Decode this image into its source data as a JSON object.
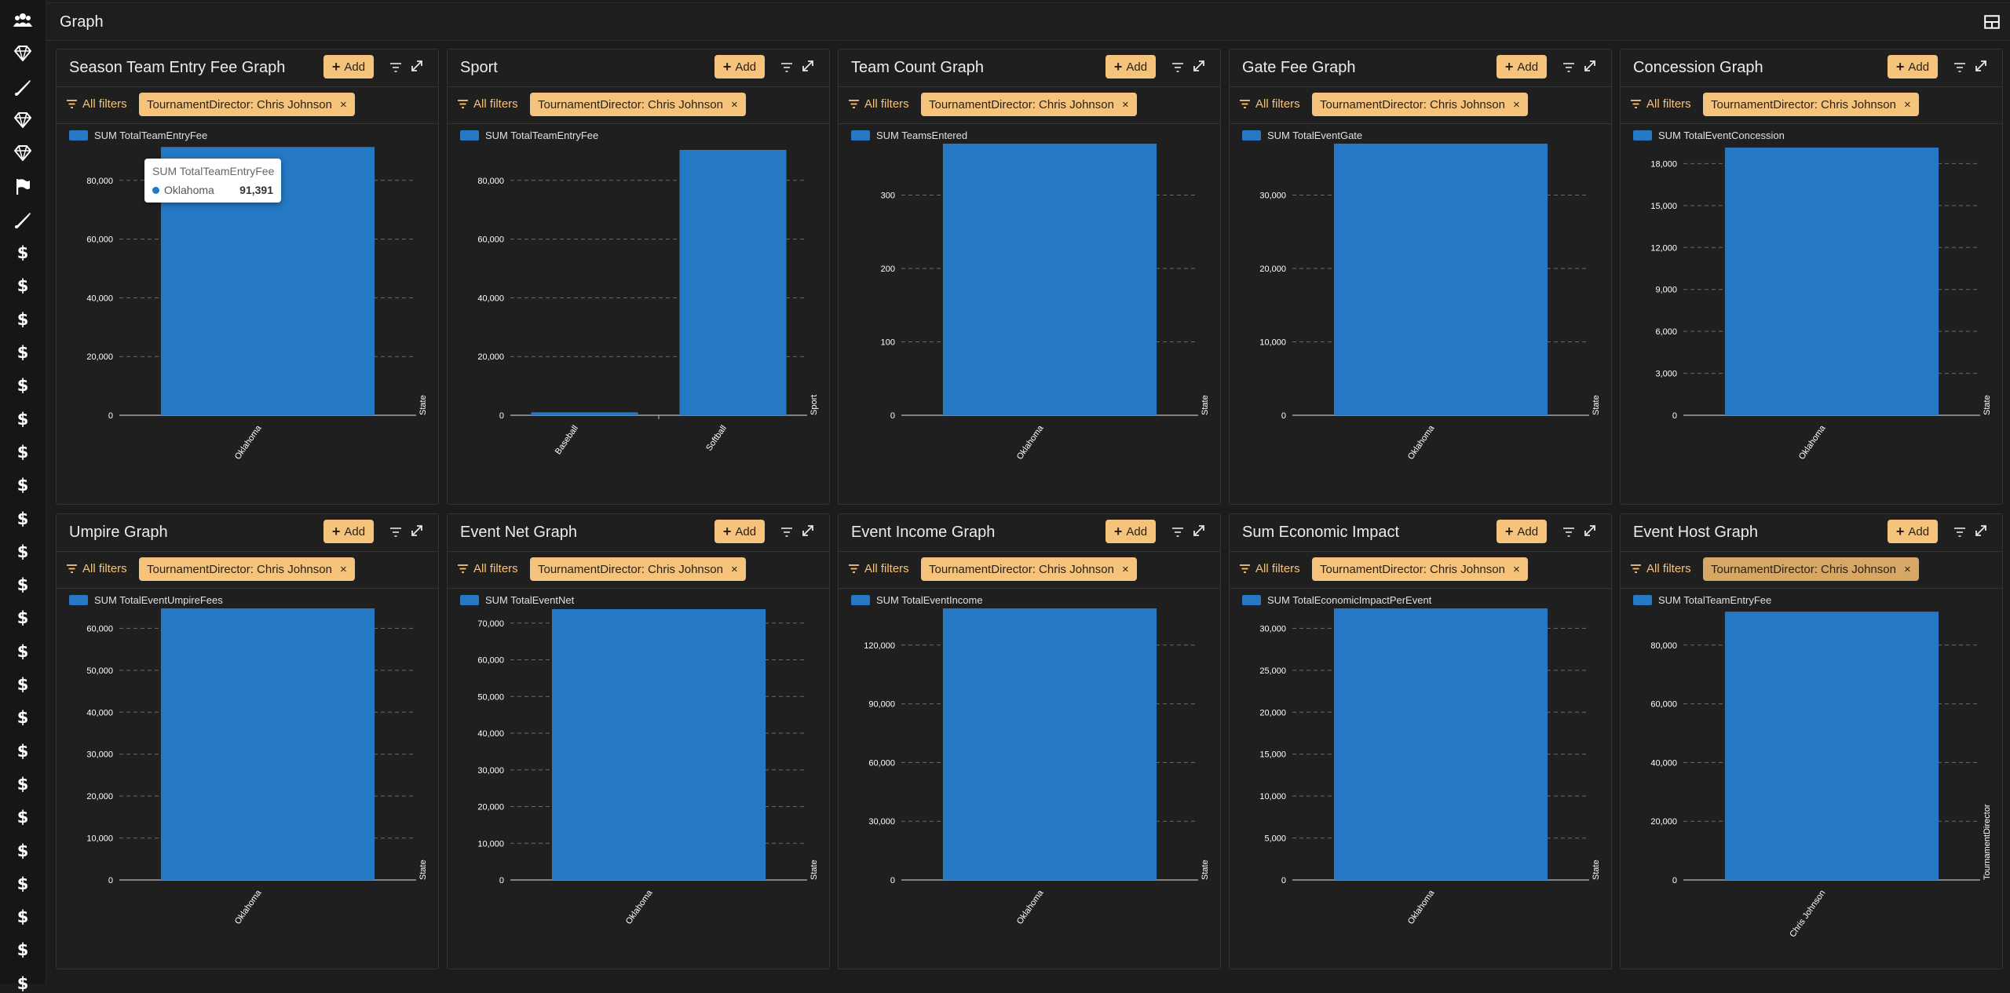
{
  "page": {
    "title": "Graph"
  },
  "theme": {
    "accent": "#f6c37d",
    "bar": "#2478c4",
    "grid": "#6a6a6a",
    "text": "#ffffff"
  },
  "sidebar": {
    "icons": [
      {
        "name": "users-icon",
        "glyph": "users"
      },
      {
        "name": "diamond-icon",
        "glyph": "diamond"
      },
      {
        "name": "baseball-bat-icon",
        "glyph": "bat"
      },
      {
        "name": "diamond-icon",
        "glyph": "diamond"
      },
      {
        "name": "diamond-icon",
        "glyph": "diamond"
      },
      {
        "name": "flag-icon",
        "glyph": "flag"
      },
      {
        "name": "baseball-bat-icon",
        "glyph": "bat"
      },
      {
        "name": "dollar-icon",
        "glyph": "dollar"
      },
      {
        "name": "dollar-icon",
        "glyph": "dollar"
      },
      {
        "name": "dollar-icon",
        "glyph": "dollar"
      },
      {
        "name": "dollar-icon",
        "glyph": "dollar"
      },
      {
        "name": "dollar-icon",
        "glyph": "dollar"
      },
      {
        "name": "dollar-icon",
        "glyph": "dollar"
      },
      {
        "name": "dollar-icon",
        "glyph": "dollar"
      },
      {
        "name": "dollar-icon",
        "glyph": "dollar"
      },
      {
        "name": "dollar-icon",
        "glyph": "dollar"
      },
      {
        "name": "dollar-icon",
        "glyph": "dollar"
      },
      {
        "name": "dollar-icon",
        "glyph": "dollar"
      },
      {
        "name": "dollar-icon",
        "glyph": "dollar"
      },
      {
        "name": "dollar-icon",
        "glyph": "dollar"
      },
      {
        "name": "dollar-icon",
        "glyph": "dollar"
      },
      {
        "name": "dollar-icon",
        "glyph": "dollar"
      },
      {
        "name": "dollar-icon",
        "glyph": "dollar"
      },
      {
        "name": "dollar-icon",
        "glyph": "dollar"
      },
      {
        "name": "dollar-icon",
        "glyph": "dollar"
      },
      {
        "name": "dollar-icon",
        "glyph": "dollar"
      },
      {
        "name": "dollar-icon",
        "glyph": "dollar"
      },
      {
        "name": "dollar-icon",
        "glyph": "dollar"
      },
      {
        "name": "dollar-icon",
        "glyph": "dollar"
      },
      {
        "name": "dollar-icon",
        "glyph": "dollar"
      }
    ]
  },
  "common": {
    "add_label": "Add",
    "all_filters_label": "All filters",
    "filter_chip": "TournamentDirector: Chris Johnson",
    "chip_close": "×"
  },
  "tooltip": {
    "series": "SUM TotalTeamEntryFee",
    "category": "Oklahoma",
    "value": "91,391"
  },
  "cards": [
    {
      "title": "Season Team Entry Fee Graph",
      "legend": "SUM TotalTeamEntryFee"
    },
    {
      "title": "Sport",
      "legend": "SUM TotalTeamEntryFee"
    },
    {
      "title": "Team Count Graph",
      "legend": "SUM TeamsEntered"
    },
    {
      "title": "Gate Fee Graph",
      "legend": "SUM TotalEventGate"
    },
    {
      "title": "Concession Graph",
      "legend": "SUM TotalEventConcession"
    },
    {
      "title": "Umpire Graph",
      "legend": "SUM TotalEventUmpireFees"
    },
    {
      "title": "Event Net Graph",
      "legend": "SUM TotalEventNet"
    },
    {
      "title": "Event Income Graph",
      "legend": "SUM TotalEventIncome"
    },
    {
      "title": "Sum Economic Impact",
      "legend": "SUM TotalEconomicImpactPerEvent"
    },
    {
      "title": "Event Host Graph",
      "legend": "SUM TotalTeamEntryFee"
    }
  ],
  "chart_data": [
    {
      "type": "bar",
      "title": "Season Team Entry Fee Graph",
      "series_name": "SUM TotalTeamEntryFee",
      "xlabel": "State",
      "categories": [
        "Oklahoma"
      ],
      "values": [
        91391
      ],
      "ylim": [
        0,
        100000
      ],
      "yticks": [
        0,
        20000,
        40000,
        60000,
        80000,
        100000
      ],
      "grid": true,
      "legend": "top-left"
    },
    {
      "type": "bar",
      "title": "Sport",
      "series_name": "SUM TotalTeamEntryFee",
      "xlabel": "Sport",
      "categories": [
        "Baseball",
        "Softball"
      ],
      "values": [
        1000,
        90391
      ],
      "ylim": [
        0,
        100000
      ],
      "yticks": [
        0,
        20000,
        40000,
        60000,
        80000,
        100000
      ],
      "grid": true,
      "legend": "top-left"
    },
    {
      "type": "bar",
      "title": "Team Count Graph",
      "series_name": "SUM TeamsEntered",
      "xlabel": "State",
      "categories": [
        "Oklahoma"
      ],
      "values": [
        383
      ],
      "ylim": [
        0,
        400
      ],
      "yticks": [
        0,
        100,
        200,
        300,
        400
      ],
      "grid": true,
      "legend": "top-left"
    },
    {
      "type": "bar",
      "title": "Gate Fee Graph",
      "series_name": "SUM TotalEventGate",
      "xlabel": "State",
      "categories": [
        "Oklahoma"
      ],
      "values": [
        38300
      ],
      "ylim": [
        0,
        40000
      ],
      "yticks": [
        0,
        10000,
        20000,
        30000,
        40000
      ],
      "grid": true,
      "legend": "top-left"
    },
    {
      "type": "bar",
      "title": "Concession Graph",
      "series_name": "SUM TotalEventConcession",
      "xlabel": "State",
      "categories": [
        "Oklahoma"
      ],
      "values": [
        19150
      ],
      "ylim": [
        0,
        21000
      ],
      "yticks": [
        0,
        3000,
        6000,
        9000,
        12000,
        15000,
        18000,
        21000
      ],
      "grid": true,
      "legend": "top-left"
    },
    {
      "type": "bar",
      "title": "Umpire Graph",
      "series_name": "SUM TotalEventUmpireFees",
      "xlabel": "State",
      "categories": [
        "Oklahoma"
      ],
      "values": [
        67600
      ],
      "ylim": [
        0,
        70000
      ],
      "yticks": [
        0,
        10000,
        20000,
        30000,
        40000,
        50000,
        60000,
        70000
      ],
      "grid": true,
      "legend": "top-left"
    },
    {
      "type": "bar",
      "title": "Event Net Graph",
      "series_name": "SUM TotalEventNet",
      "xlabel": "State",
      "categories": [
        "Oklahoma"
      ],
      "values": [
        73800
      ],
      "ylim": [
        0,
        80000
      ],
      "yticks": [
        0,
        10000,
        20000,
        30000,
        40000,
        50000,
        60000,
        70000,
        80000
      ],
      "grid": true,
      "legend": "top-left"
    },
    {
      "type": "bar",
      "title": "Event Income Graph",
      "series_name": "SUM TotalEventIncome",
      "xlabel": "State",
      "categories": [
        "Oklahoma"
      ],
      "values": [
        148600
      ],
      "ylim": [
        0,
        150000
      ],
      "yticks": [
        0,
        30000,
        60000,
        90000,
        120000,
        150000
      ],
      "grid": true,
      "legend": "top-left"
    },
    {
      "type": "bar",
      "title": "Sum Economic Impact",
      "series_name": "SUM TotalEconomicImpactPerEvent",
      "xlabel": "State",
      "categories": [
        "Oklahoma"
      ],
      "values": [
        32700
      ],
      "ylim": [
        0,
        35000
      ],
      "yticks": [
        0,
        5000,
        10000,
        15000,
        20000,
        25000,
        30000,
        35000
      ],
      "grid": true,
      "legend": "top-left"
    },
    {
      "type": "bar",
      "title": "Event Host Graph",
      "series_name": "SUM TotalTeamEntryFee",
      "xlabel": "TournamentDirector",
      "categories": [
        "Chris Johnson"
      ],
      "values": [
        91391
      ],
      "ylim": [
        0,
        100000
      ],
      "yticks": [
        0,
        20000,
        40000,
        60000,
        80000,
        100000
      ],
      "grid": true,
      "legend": "top-left"
    }
  ]
}
